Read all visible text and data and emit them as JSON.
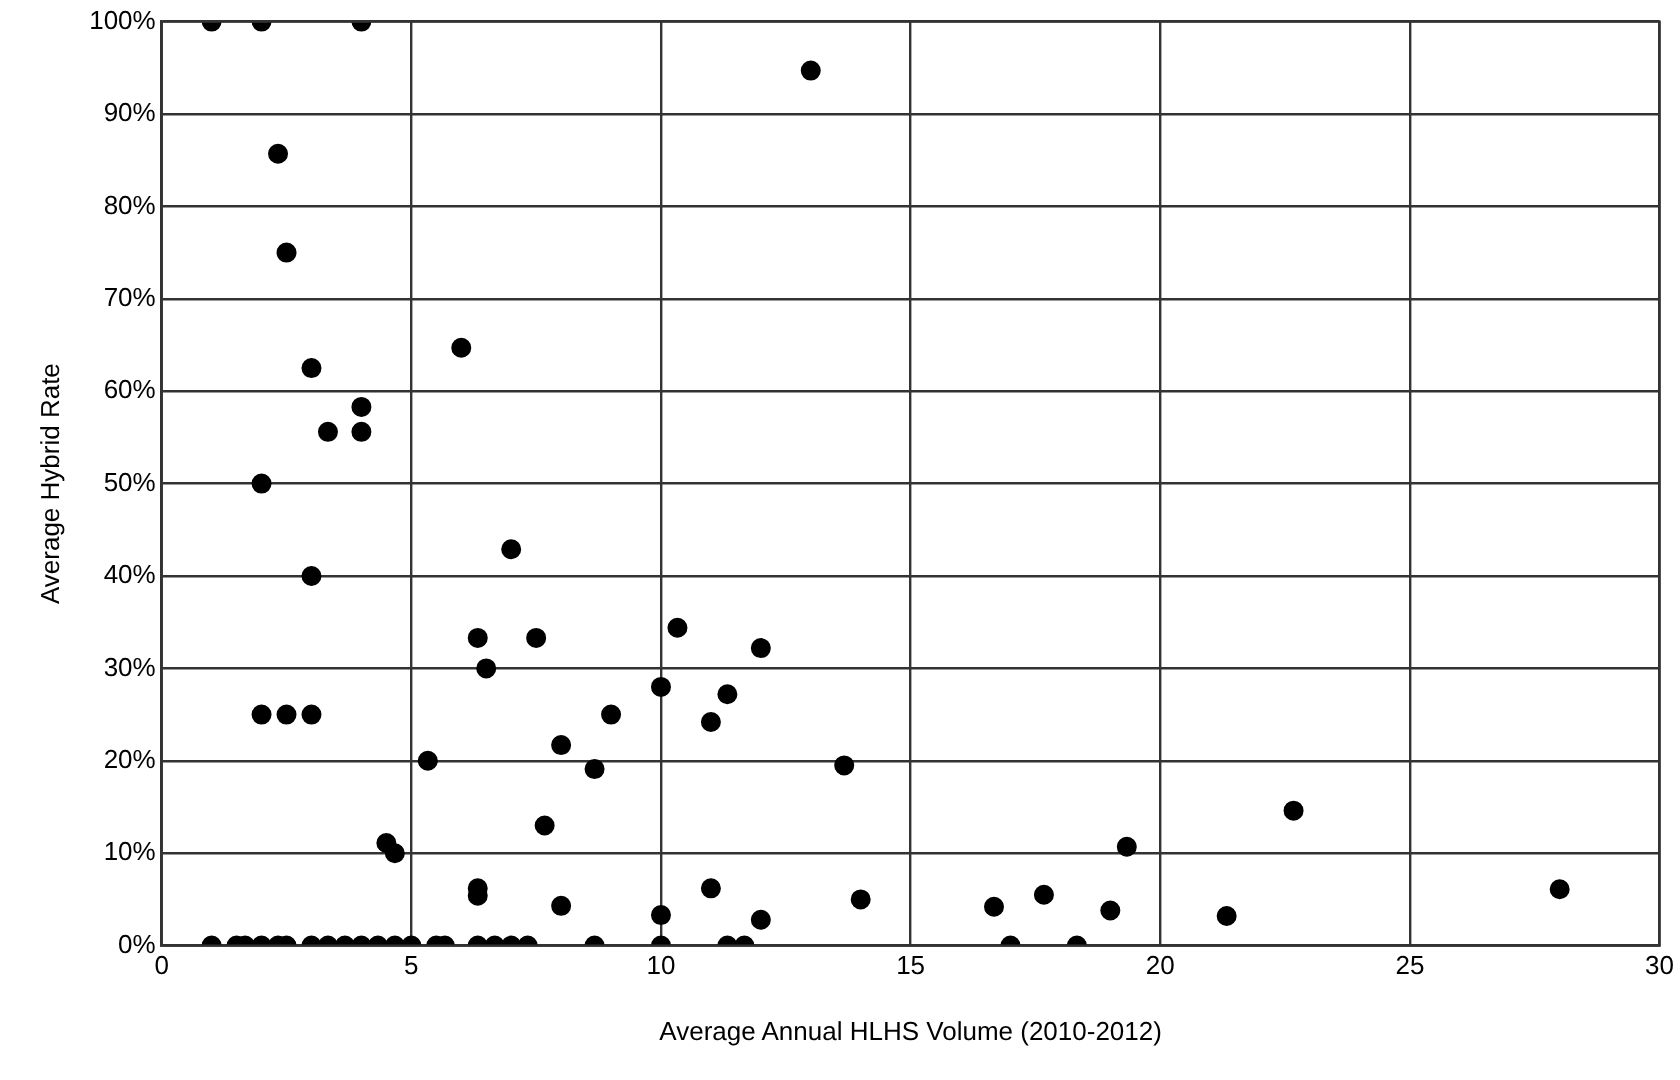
{
  "chart_data": {
    "type": "scatter",
    "xlabel": "Average Annual HLHS Volume (2010-2012)",
    "ylabel": "Average Hybrid Rate",
    "xlim": [
      0,
      30
    ],
    "xticks": [
      0,
      5,
      10,
      15,
      20,
      25,
      30
    ],
    "ylim": [
      0,
      100
    ],
    "yticks": [
      {
        "value": 0,
        "label": "0%"
      },
      {
        "value": 10,
        "label": "10%"
      },
      {
        "value": 20,
        "label": "20%"
      },
      {
        "value": 30,
        "label": "30%"
      },
      {
        "value": 40,
        "label": "40%"
      },
      {
        "value": 50,
        "label": "50%"
      },
      {
        "value": 60,
        "label": "60%"
      },
      {
        "value": 70,
        "label": "70%"
      },
      {
        "value": 80,
        "label": "80%"
      },
      {
        "value": 90,
        "label": "90%"
      },
      {
        "value": 100,
        "label": "100%"
      }
    ],
    "grid": true,
    "marker": "circle",
    "legend": false,
    "series": [
      {
        "color": "#000000",
        "x": [
          1.0,
          2.0,
          4.0,
          2.33,
          2.5,
          6.0,
          3.0,
          4.0,
          3.33,
          4.0,
          2.0,
          13.0,
          7.0,
          3.0,
          6.33,
          7.5,
          10.33,
          6.5,
          10.0,
          2.0,
          2.5,
          3.0,
          9.0,
          8.0,
          8.67,
          5.33,
          7.67,
          4.5,
          4.67,
          6.33,
          6.33,
          8.0,
          10.0,
          1.0,
          1.5,
          1.67,
          2.0,
          2.33,
          2.5,
          3.0,
          3.33,
          3.67,
          4.0,
          4.33,
          4.67,
          5.0,
          5.5,
          5.67,
          6.33,
          6.67,
          7.0,
          7.33,
          8.67,
          10.0,
          12.0,
          11.33,
          11.0,
          13.67,
          19.33,
          11.0,
          14.0,
          16.67,
          17.67,
          19.0,
          12.0,
          11.33,
          11.67,
          17.0,
          18.33,
          22.67,
          21.33,
          28.0
        ],
        "values": [
          100,
          100,
          100,
          85.7,
          75,
          64.7,
          62.5,
          58.3,
          55.6,
          55.6,
          50,
          94.7,
          42.9,
          40,
          33.3,
          33.3,
          34.4,
          30,
          28,
          25,
          25,
          25,
          25,
          21.7,
          19.1,
          20,
          13,
          11.1,
          10,
          6.2,
          5.4,
          4.3,
          3.3,
          0,
          0,
          0,
          0,
          0,
          0,
          0,
          0,
          0,
          0,
          0,
          0,
          0,
          0,
          0,
          0,
          0,
          0,
          0,
          0,
          0,
          32.2,
          27.2,
          24.2,
          19.5,
          10.7,
          6.2,
          5,
          4.2,
          5.5,
          3.8,
          2.8,
          0,
          0,
          0,
          0,
          14.6,
          3.2,
          6.1
        ]
      }
    ]
  }
}
